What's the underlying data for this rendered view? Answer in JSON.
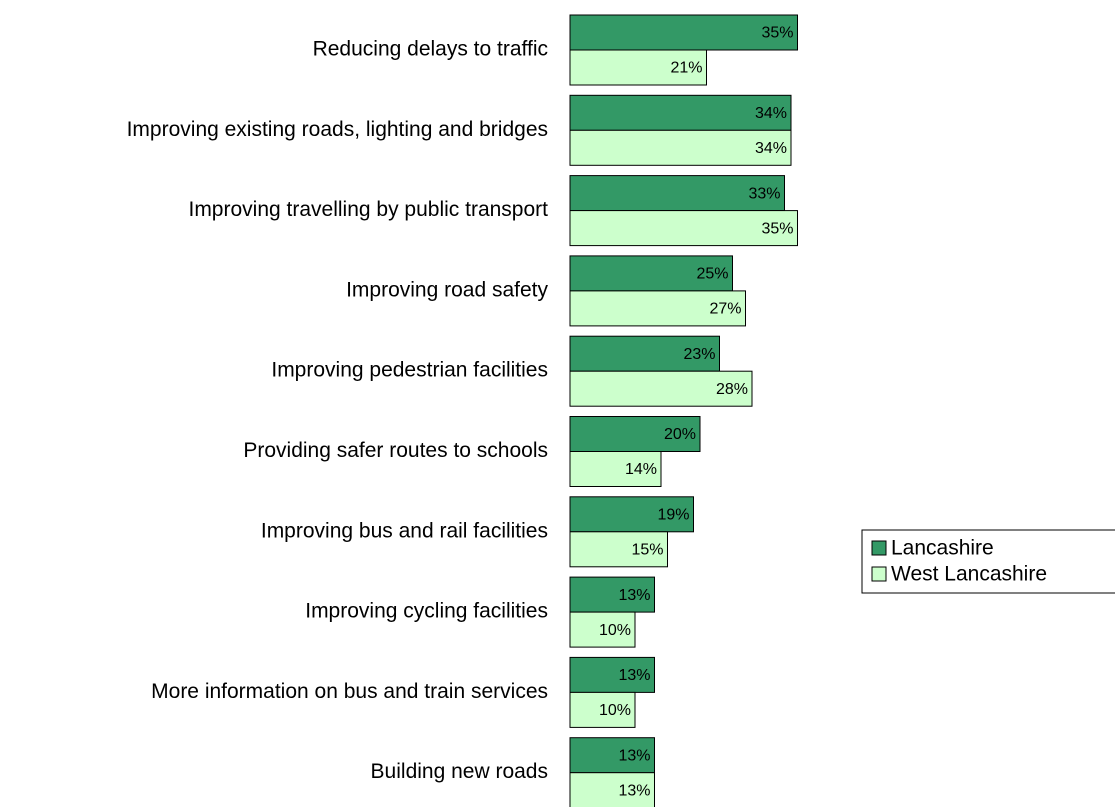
{
  "chart_data": {
    "type": "bar",
    "orientation": "horizontal",
    "categories": [
      "Reducing delays to traffic",
      "Improving existing roads, lighting and bridges",
      "Improving travelling by public transport",
      "Improving road safety",
      "Improving pedestrian facilities",
      "Providing safer routes to schools",
      "Improving bus and rail facilities",
      "Improving cycling facilities",
      "More information on bus and train services",
      "Building new roads"
    ],
    "series": [
      {
        "name": "Lancashire",
        "color": "#339966",
        "values": [
          35,
          34,
          33,
          25,
          23,
          20,
          19,
          13,
          13,
          13
        ],
        "value_labels": [
          "35%",
          "34%",
          "33%",
          "25%",
          "23%",
          "20%",
          "19%",
          "13%",
          "13%",
          "13%"
        ]
      },
      {
        "name": "West Lancashire",
        "color": "#ccffcc",
        "values": [
          21,
          34,
          35,
          27,
          28,
          14,
          15,
          10,
          10,
          13
        ],
        "value_labels": [
          "21%",
          "34%",
          "35%",
          "27%",
          "28%",
          "14%",
          "15%",
          "10%",
          "10%",
          "13%"
        ]
      }
    ],
    "xlim": [
      0,
      40
    ],
    "legend": "right"
  }
}
